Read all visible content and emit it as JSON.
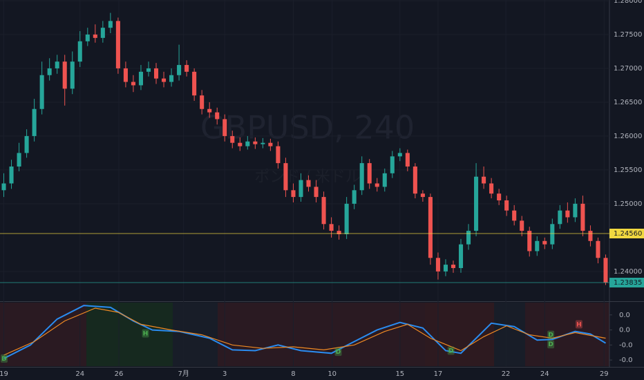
{
  "chart_data": [
    {
      "type": "candlestick",
      "watermark": "GBPUSD, 240",
      "watermark_subtitle": "ポンド / 米ドル",
      "up_color": "#26a69a",
      "down_color": "#ef5350",
      "open": [
        1.252,
        1.253,
        1.2555,
        1.2575,
        1.26,
        1.264,
        1.269,
        1.27,
        1.271,
        1.267,
        1.271,
        1.274,
        1.275,
        1.2745,
        1.276,
        1.277,
        1.27,
        1.268,
        1.2675,
        1.2695,
        1.27,
        1.2685,
        1.268,
        1.269,
        1.2705,
        1.2695,
        1.266,
        1.264,
        1.2635,
        1.2625,
        1.26,
        1.259,
        1.2585,
        1.2592,
        1.2588,
        1.259,
        1.2585,
        1.256,
        1.252,
        1.251,
        1.2535,
        1.2525,
        1.251,
        1.247,
        1.246,
        1.2455,
        1.25,
        1.252,
        1.256,
        1.253,
        1.2525,
        1.2545,
        1.257,
        1.2575,
        1.2555,
        1.2515,
        1.251,
        1.242,
        1.24,
        1.241,
        1.2405,
        1.244,
        1.246,
        1.254,
        1.253,
        1.2515,
        1.2505,
        1.249,
        1.2475,
        1.246,
        1.243,
        1.2445,
        1.244,
        1.247,
        1.249,
        1.248,
        1.25,
        1.246,
        1.2445,
        1.242
      ],
      "high": [
        1.2545,
        1.2565,
        1.259,
        1.261,
        1.2655,
        1.271,
        1.2715,
        1.272,
        1.272,
        1.2725,
        1.2755,
        1.276,
        1.2765,
        1.277,
        1.2782,
        1.2775,
        1.271,
        1.269,
        1.2705,
        1.271,
        1.2708,
        1.2695,
        1.27,
        1.2735,
        1.2712,
        1.27,
        1.2668,
        1.265,
        1.2642,
        1.2632,
        1.2608,
        1.2598,
        1.26,
        1.2598,
        1.2597,
        1.2596,
        1.2592,
        1.2568,
        1.253,
        1.2545,
        1.2542,
        1.2535,
        1.2518,
        1.248,
        1.2468,
        1.251,
        1.2528,
        1.257,
        1.2566,
        1.2538,
        1.2552,
        1.2578,
        1.2582,
        1.258,
        1.256,
        1.252,
        1.2515,
        1.2428,
        1.2418,
        1.2416,
        1.2448,
        1.247,
        1.256,
        1.2555,
        1.2538,
        1.2522,
        1.2512,
        1.2498,
        1.2482,
        1.2466,
        1.2452,
        1.245,
        1.2478,
        1.2498,
        1.2502,
        1.2508,
        1.2512,
        1.2468,
        1.245,
        1.2425
      ],
      "low": [
        1.251,
        1.2522,
        1.2548,
        1.2568,
        1.2592,
        1.2632,
        1.2682,
        1.2692,
        1.2645,
        1.2662,
        1.2702,
        1.2733,
        1.2738,
        1.2738,
        1.2752,
        1.2692,
        1.2672,
        1.2665,
        1.2668,
        1.2688,
        1.2677,
        1.2672,
        1.2673,
        1.2682,
        1.2688,
        1.2652,
        1.2632,
        1.2627,
        1.2617,
        1.2592,
        1.2582,
        1.2578,
        1.258,
        1.2581,
        1.2582,
        1.2578,
        1.2552,
        1.251,
        1.2502,
        1.2503,
        1.2518,
        1.2502,
        1.2462,
        1.245,
        1.2447,
        1.2448,
        1.2492,
        1.2513,
        1.2522,
        1.2518,
        1.2518,
        1.2538,
        1.2563,
        1.2548,
        1.2508,
        1.2503,
        1.241,
        1.2388,
        1.2393,
        1.2398,
        1.2398,
        1.2432,
        1.2452,
        1.2522,
        1.2508,
        1.2498,
        1.2482,
        1.2468,
        1.2452,
        1.2422,
        1.2423,
        1.2433,
        1.2433,
        1.2463,
        1.2472,
        1.2473,
        1.2452,
        1.2437,
        1.2412,
        1.238
      ],
      "close": [
        1.253,
        1.2555,
        1.2575,
        1.26,
        1.264,
        1.269,
        1.27,
        1.271,
        1.267,
        1.271,
        1.274,
        1.275,
        1.2745,
        1.276,
        1.277,
        1.27,
        1.268,
        1.2675,
        1.2695,
        1.27,
        1.2685,
        1.268,
        1.269,
        1.2705,
        1.2695,
        1.266,
        1.264,
        1.2635,
        1.2625,
        1.26,
        1.259,
        1.2585,
        1.2592,
        1.2588,
        1.259,
        1.2585,
        1.256,
        1.252,
        1.251,
        1.2535,
        1.2525,
        1.251,
        1.247,
        1.246,
        1.2455,
        1.25,
        1.252,
        1.256,
        1.253,
        1.2525,
        1.2545,
        1.257,
        1.2575,
        1.2555,
        1.2515,
        1.251,
        1.242,
        1.24,
        1.241,
        1.2405,
        1.244,
        1.246,
        1.254,
        1.253,
        1.2515,
        1.2505,
        1.249,
        1.2475,
        1.246,
        1.243,
        1.2445,
        1.244,
        1.247,
        1.249,
        1.248,
        1.25,
        1.246,
        1.2445,
        1.242,
        1.23835
      ],
      "xlim": [
        -0.5,
        79.5
      ],
      "xticks": [
        {
          "value": 0,
          "label": "19"
        },
        {
          "value": 10,
          "label": "24"
        },
        {
          "value": 15.1,
          "label": "26"
        },
        {
          "value": 23.6,
          "label": "7月"
        },
        {
          "value": 29,
          "label": "3"
        },
        {
          "value": 38,
          "label": "8"
        },
        {
          "value": 43.1,
          "label": "10"
        },
        {
          "value": 52,
          "label": "15"
        },
        {
          "value": 57,
          "label": "17"
        },
        {
          "value": 65.9,
          "label": "22"
        },
        {
          "value": 71,
          "label": "24"
        },
        {
          "value": 78.8,
          "label": "29"
        }
      ],
      "ylim": [
        1.2357,
        1.2801
      ],
      "yticks": [
        {
          "value": 1.28,
          "label": "1.28000"
        },
        {
          "value": 1.275,
          "label": "1.27500"
        },
        {
          "value": 1.27,
          "label": "1.27000"
        },
        {
          "value": 1.265,
          "label": "1.26500"
        },
        {
          "value": 1.26,
          "label": "1.26000"
        },
        {
          "value": 1.255,
          "label": "1.25500"
        },
        {
          "value": 1.25,
          "label": "1.25000"
        },
        {
          "value": 1.24,
          "label": "1.24000"
        }
      ],
      "price_lines": [
        {
          "value": 1.2456,
          "label": "1.24560",
          "color": "#f0d840"
        },
        {
          "value": 1.23835,
          "label": "1.23835",
          "color": "#26a69a"
        }
      ]
    },
    {
      "type": "line",
      "series": [
        {
          "color": "#2a8cf0",
          "x": [
            0,
            3.5,
            7,
            10.5,
            14,
            17,
            19.5,
            23,
            27,
            30,
            33,
            36,
            39,
            43,
            46,
            49,
            52,
            55,
            58,
            60,
            62,
            64,
            67,
            70,
            72,
            75,
            77,
            79
          ],
          "values": [
            -0.0076,
            -0.004,
            0.0029,
            0.0065,
            0.006,
            0.0024,
            0,
            -0.0004,
            -0.0022,
            -0.0053,
            -0.0055,
            -0.004,
            -0.0055,
            -0.0062,
            -0.0031,
            0,
            0.002,
            0.0005,
            -0.0055,
            -0.0062,
            -0.0022,
            0.0018,
            0.0009,
            -0.0027,
            -0.0025,
            -0.0004,
            -0.0011,
            -0.0035
          ]
        },
        {
          "color": "#f08a24",
          "x": [
            0,
            4,
            8,
            12,
            15,
            18,
            22,
            26,
            30,
            34,
            38,
            42,
            46,
            50,
            53,
            56,
            60,
            63,
            66,
            69,
            72,
            75,
            79
          ],
          "values": [
            -0.0067,
            -0.0031,
            0.0024,
            0.0058,
            0.0047,
            0.0015,
            0,
            -0.0013,
            -0.004,
            -0.0049,
            -0.0045,
            -0.0053,
            -0.004,
            -0.0004,
            0.0015,
            -0.0022,
            -0.0055,
            -0.0018,
            0.0011,
            -0.0013,
            -0.0022,
            -0.0007,
            -0.0022
          ]
        }
      ],
      "markers": [
        {
          "text": "D",
          "x": 0,
          "y": -0.0076,
          "color": "#4caf50"
        },
        {
          "text": "H",
          "x": 18.6,
          "y": -0.0009,
          "color": "#4caf50"
        },
        {
          "text": "D",
          "x": 43.9,
          "y": -0.0058,
          "color": "#4caf50"
        },
        {
          "text": "D",
          "x": 58.7,
          "y": -0.0055,
          "color": "#4caf50"
        },
        {
          "text": "D",
          "x": 71.8,
          "y": -0.0013,
          "color": "#4caf50"
        },
        {
          "text": "D",
          "x": 71.8,
          "y": -0.0038,
          "color": "#4caf50"
        },
        {
          "text": "H",
          "x": 75.5,
          "y": 0.0015,
          "color": "#ef5350"
        }
      ],
      "xlim": [
        -0.5,
        79.5
      ],
      "ylim": [
        -0.00964,
        0.00727
      ],
      "yticks": [
        {
          "value": 0.004,
          "label": "0.0"
        },
        {
          "value": 0,
          "label": "0.0"
        },
        {
          "value": -0.004,
          "label": "-0.0"
        },
        {
          "value": -0.008,
          "label": "-0.0"
        }
      ]
    }
  ]
}
